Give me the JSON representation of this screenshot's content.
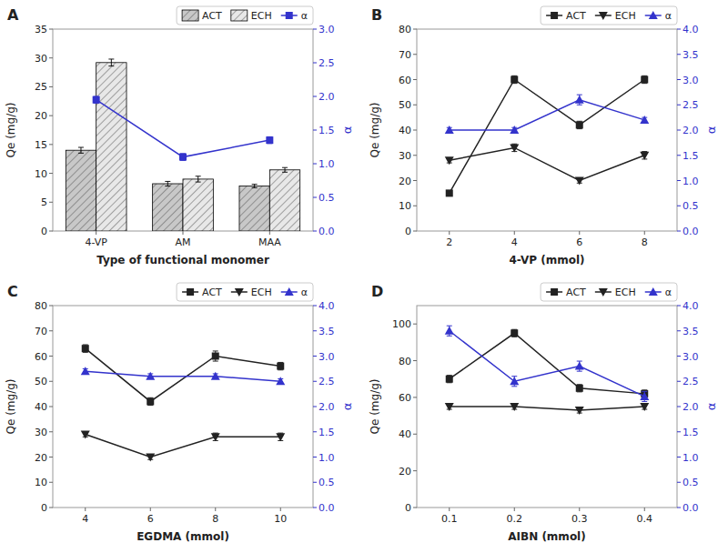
{
  "chart_data": [
    {
      "type": "bar",
      "title": "A",
      "categories": [
        "4-VP",
        "AM",
        "MAA"
      ],
      "series": [
        {
          "name": "ACT",
          "color": "#c8c8c8",
          "values": [
            14.0,
            8.2,
            7.8
          ],
          "errors": [
            0.5,
            0.4,
            0.3
          ]
        },
        {
          "name": "ECH",
          "color": "#e8e8e8",
          "values": [
            29.2,
            9.0,
            10.6
          ],
          "errors": [
            0.6,
            0.5,
            0.4
          ]
        },
        {
          "name": "α",
          "type": "line",
          "axis": "y2",
          "color": "#3333cc",
          "marker": "square",
          "values": [
            1.95,
            1.1,
            1.35
          ],
          "errors": [
            0.05,
            0.05,
            0.05
          ]
        }
      ],
      "xlabel": "Type of functional monomer",
      "ylabel": "Qe (mg/g)",
      "y2label": "α",
      "ylim": [
        0,
        35
      ],
      "yticks": [
        0,
        5,
        10,
        15,
        20,
        25,
        30,
        35
      ],
      "y2lim": [
        0.0,
        3.0
      ],
      "y2ticks": [
        {
          "value": 0.0,
          "label": "0.0"
        },
        0.5,
        {
          "value": 1.0,
          "label": "1.0"
        },
        1.5,
        {
          "value": 2.0,
          "label": "2.0"
        },
        2.5,
        {
          "value": 3.0,
          "label": "3.0"
        }
      ],
      "legend": "upper right",
      "grid": false
    },
    {
      "type": "line",
      "title": "B",
      "x": [
        2,
        4,
        6,
        8
      ],
      "series": [
        {
          "name": "ACT",
          "color": "#222222",
          "marker": "square",
          "values": [
            15.0,
            60.0,
            42.0,
            60.0
          ],
          "errors": [
            1.0,
            1.5,
            1.5,
            1.5
          ]
        },
        {
          "name": "ECH",
          "color": "#222222",
          "marker": "triangle-down",
          "values": [
            28.0,
            33.0,
            20.0,
            30.0
          ],
          "errors": [
            1.0,
            1.5,
            1.0,
            1.5
          ]
        },
        {
          "name": "α",
          "axis": "y2",
          "color": "#3333cc",
          "marker": "triangle-up",
          "values": [
            2.0,
            2.0,
            2.6,
            2.2
          ],
          "errors": [
            0.05,
            0.05,
            0.1,
            0.05
          ]
        }
      ],
      "xlabel": "4-VP (mmol)",
      "ylabel": "Qe (mg/g)",
      "y2label": "α",
      "xlim": [
        1,
        9
      ],
      "xticks": [
        2,
        4,
        6,
        8
      ],
      "ylim": [
        0,
        80
      ],
      "yticks": [
        0,
        10,
        20,
        30,
        40,
        50,
        60,
        70,
        80
      ],
      "y2lim": [
        0.0,
        4.0
      ],
      "y2ticks": [
        {
          "value": 0.0,
          "label": "0.0"
        },
        0.5,
        {
          "value": 1.0,
          "label": "1.0"
        },
        1.5,
        {
          "value": 2.0,
          "label": "2.0"
        },
        2.5,
        {
          "value": 3.0,
          "label": "3.0"
        },
        3.5,
        {
          "value": 4.0,
          "label": "4.0"
        }
      ],
      "legend": "upper right",
      "grid": false
    },
    {
      "type": "line",
      "title": "C",
      "x": [
        4,
        6,
        8,
        10
      ],
      "series": [
        {
          "name": "ACT",
          "color": "#222222",
          "marker": "square",
          "values": [
            63.0,
            42.0,
            60.0,
            56.0
          ],
          "errors": [
            1.5,
            1.5,
            2.0,
            1.5
          ]
        },
        {
          "name": "ECH",
          "color": "#222222",
          "marker": "triangle-down",
          "values": [
            29.0,
            20.0,
            28.0,
            28.0
          ],
          "errors": [
            1.0,
            1.0,
            1.5,
            1.5
          ]
        },
        {
          "name": "α",
          "axis": "y2",
          "color": "#3333cc",
          "marker": "triangle-up",
          "values": [
            2.7,
            2.6,
            2.6,
            2.5
          ],
          "errors": [
            0.05,
            0.05,
            0.05,
            0.05
          ]
        }
      ],
      "xlabel": "EGDMA (mmol)",
      "ylabel": "Qe (mg/g)",
      "y2label": "α",
      "xlim": [
        3,
        11
      ],
      "xticks": [
        4,
        6,
        8,
        10
      ],
      "ylim": [
        0,
        80
      ],
      "yticks": [
        0,
        10,
        20,
        30,
        40,
        50,
        60,
        70,
        80
      ],
      "y2lim": [
        0.0,
        4.0
      ],
      "y2ticks": [
        {
          "value": 0.0,
          "label": "0.0"
        },
        0.5,
        {
          "value": 1.0,
          "label": "1.0"
        },
        1.5,
        {
          "value": 2.0,
          "label": "2.0"
        },
        2.5,
        {
          "value": 3.0,
          "label": "3.0"
        },
        3.5,
        {
          "value": 4.0,
          "label": "4.0"
        }
      ],
      "legend": "upper right",
      "grid": false
    },
    {
      "type": "line",
      "title": "D",
      "x": [
        0.1,
        0.2,
        0.3,
        0.4
      ],
      "series": [
        {
          "name": "ACT",
          "color": "#222222",
          "marker": "square",
          "values": [
            70.0,
            95.0,
            65.0,
            62.0
          ],
          "errors": [
            2.0,
            2.0,
            2.0,
            2.0
          ]
        },
        {
          "name": "ECH",
          "color": "#222222",
          "marker": "triangle-down",
          "values": [
            55.0,
            55.0,
            53.0,
            55.0
          ],
          "errors": [
            1.5,
            1.5,
            1.5,
            1.5
          ]
        },
        {
          "name": "α",
          "axis": "y2",
          "color": "#3333cc",
          "marker": "triangle-up",
          "values": [
            3.5,
            2.5,
            2.8,
            2.2
          ],
          "errors": [
            0.1,
            0.1,
            0.1,
            0.1
          ]
        }
      ],
      "xlabel": "AIBN (mmol)",
      "ylabel": "Qe (mg/g)",
      "y2label": "α",
      "xlim": [
        0.05,
        0.45
      ],
      "xticks": [
        0.1,
        0.2,
        0.3,
        0.4
      ],
      "ylim": [
        0,
        110
      ],
      "yticks": [
        0,
        20,
        40,
        60,
        80,
        100
      ],
      "y2lim": [
        0.0,
        4.0
      ],
      "y2ticks": [
        {
          "value": 0.0,
          "label": "0.0"
        },
        0.5,
        {
          "value": 1.0,
          "label": "1.0"
        },
        1.5,
        {
          "value": 2.0,
          "label": "2.0"
        },
        2.5,
        {
          "value": 3.0,
          "label": "3.0"
        },
        3.5,
        {
          "value": 4.0,
          "label": "4.0"
        }
      ],
      "legend": "upper right",
      "grid": false
    }
  ]
}
